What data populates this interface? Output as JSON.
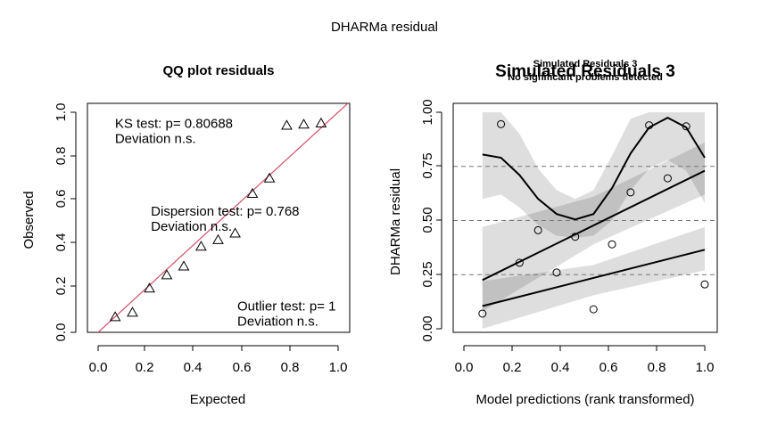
{
  "figure_title": "DHARMa residual",
  "chart_data": [
    {
      "type": "scatter",
      "title": "QQ plot residuals",
      "xlabel": "Expected",
      "ylabel": "Observed",
      "xlim": [
        0,
        1
      ],
      "ylim": [
        0,
        1
      ],
      "xticks": [
        "0.0",
        "0.2",
        "0.4",
        "0.6",
        "0.8",
        "1.0"
      ],
      "yticks": [
        "0.0",
        "0.2",
        "0.4",
        "0.6",
        "0.8",
        "1.0"
      ],
      "marker": "triangle",
      "reference_line": {
        "from": [
          0,
          0
        ],
        "to": [
          1,
          1
        ],
        "color": "#d0506a"
      },
      "points": {
        "x": [
          0.071,
          0.143,
          0.214,
          0.286,
          0.357,
          0.429,
          0.5,
          0.571,
          0.643,
          0.714,
          0.786,
          0.857,
          0.929
        ],
        "y": [
          0.07,
          0.09,
          0.2,
          0.26,
          0.3,
          0.39,
          0.42,
          0.45,
          0.63,
          0.7,
          0.94,
          0.945,
          0.95
        ]
      },
      "annotations": [
        {
          "lines": [
            "KS test: p= 0.80688",
            "Deviation  n.s."
          ],
          "at": [
            0.07,
            0.93
          ]
        },
        {
          "lines": [
            "Dispersion test: p= 0.768",
            "Deviation  n.s."
          ],
          "at": [
            0.22,
            0.53
          ]
        },
        {
          "lines": [
            "Outlier test: p= 1",
            "Deviation  n.s."
          ],
          "at": [
            0.58,
            0.1
          ]
        }
      ]
    },
    {
      "type": "scatter",
      "title": "Simulated Residuals 3",
      "subtitle_lines": [
        "Simulated Residuals 3",
        "No significant problems detected"
      ],
      "xlabel": "Model predictions (rank transformed)",
      "ylabel": "DHARMa residual",
      "xlim": [
        0,
        1
      ],
      "ylim": [
        0,
        1
      ],
      "xticks": [
        "0.0",
        "0.2",
        "0.4",
        "0.6",
        "0.8",
        "1.0"
      ],
      "yticks": [
        "0.00",
        "0.25",
        "0.50",
        "0.75",
        "1.00"
      ],
      "hlines": [
        0.25,
        0.5,
        0.75
      ],
      "marker": "circle",
      "points": {
        "x": [
          0.077,
          0.154,
          0.231,
          0.308,
          0.385,
          0.462,
          0.538,
          0.615,
          0.692,
          0.769,
          0.846,
          0.923,
          1.0
        ],
        "y": [
          0.07,
          0.945,
          0.305,
          0.455,
          0.26,
          0.425,
          0.09,
          0.39,
          0.63,
          0.94,
          0.695,
          0.935,
          0.205
        ]
      },
      "quantile_lines": [
        {
          "x": [
            0.077,
            1.0
          ],
          "y": [
            0.105,
            0.365
          ]
        },
        {
          "x": [
            0.077,
            1.0
          ],
          "y": [
            0.225,
            0.73
          ]
        },
        {
          "x": [
            0.077,
            0.154,
            0.231,
            0.308,
            0.385,
            0.462,
            0.538,
            0.615,
            0.692,
            0.769,
            0.846,
            0.923,
            1.0
          ],
          "y": [
            0.805,
            0.79,
            0.71,
            0.6,
            0.53,
            0.505,
            0.53,
            0.65,
            0.81,
            0.93,
            0.975,
            0.93,
            0.79
          ]
        }
      ],
      "bands": [
        {
          "x": [
            0.077,
            0.538,
            1.0
          ],
          "lower": [
            0.0,
            0.155,
            0.27
          ],
          "upper": [
            0.22,
            0.295,
            0.47
          ]
        },
        {
          "x": [
            0.077,
            0.538,
            1.0
          ],
          "lower": [
            0.08,
            0.39,
            0.62
          ],
          "upper": [
            0.47,
            0.61,
            0.86
          ]
        },
        {
          "x": [
            0.077,
            0.154,
            0.231,
            0.308,
            0.385,
            0.462,
            0.538,
            0.615,
            0.692,
            0.769,
            0.846,
            0.923,
            1.0
          ],
          "lower": [
            0.6,
            0.62,
            0.56,
            0.48,
            0.43,
            0.42,
            0.43,
            0.5,
            0.64,
            0.74,
            0.78,
            0.73,
            0.58
          ],
          "upper": [
            1.0,
            1.0,
            0.9,
            0.74,
            0.64,
            0.6,
            0.64,
            0.8,
            0.97,
            1.0,
            1.0,
            1.0,
            1.0
          ]
        }
      ]
    }
  ]
}
